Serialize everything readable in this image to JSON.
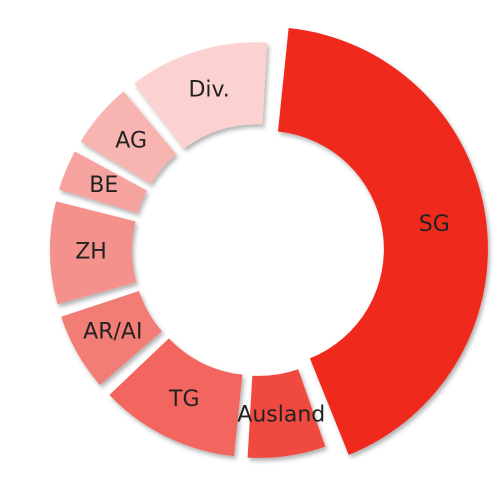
{
  "chart_data": {
    "type": "donut",
    "categories": [
      "SG",
      "Ausland",
      "TG",
      "AR/AI",
      "ZH",
      "BE",
      "AG",
      "Div."
    ],
    "values": [
      43,
      7,
      12,
      7,
      9,
      4,
      6,
      12
    ],
    "colors": [
      "#ef2a1f",
      "#f04a3f",
      "#f2665f",
      "#f27c76",
      "#f5918c",
      "#f6a29e",
      "#f8b4b0",
      "#fbd2cf"
    ]
  }
}
